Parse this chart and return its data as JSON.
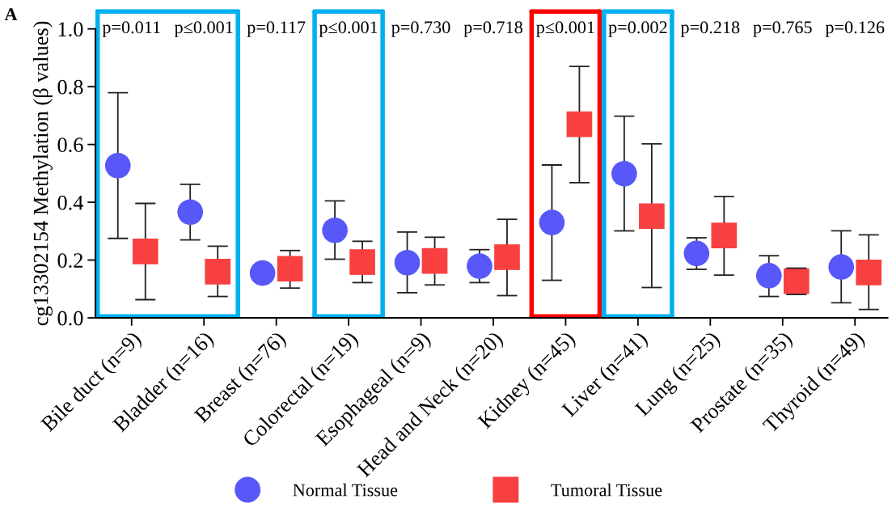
{
  "chart_data": {
    "type": "scatter",
    "ylabel": "cg13302154 Methylation (β values)",
    "categories": [
      "Bile duct (n=9)",
      "Bladder (n=16)",
      "Breast (n=76)",
      "Colorectal (n=19)",
      "Esophageal (n=9)",
      "Head and Neck (n=20)",
      "Kidney (n=45)",
      "Liver (n=41)",
      "Lung (n=25)",
      "Prostate (n=35)",
      "Thyroid (n=49)"
    ],
    "series": [
      {
        "name": "Normal Tissue",
        "color": "#5858f8",
        "marker": "circle",
        "values": [
          0.527,
          0.366,
          0.155,
          0.303,
          0.191,
          0.179,
          0.33,
          0.499,
          0.223,
          0.146,
          0.176
        ],
        "errors": [
          [
            0.275,
            0.779
          ],
          [
            0.27,
            0.462
          ],
          null,
          [
            0.203,
            0.405
          ],
          [
            0.087,
            0.297
          ],
          [
            0.122,
            0.236
          ],
          [
            0.13,
            0.529
          ],
          [
            0.301,
            0.698
          ],
          [
            0.168,
            0.277
          ],
          [
            0.074,
            0.215
          ],
          [
            0.052,
            0.301
          ]
        ]
      },
      {
        "name": "Tumoral Tissue",
        "color": "#f84040",
        "marker": "square",
        "values": [
          0.23,
          0.16,
          0.17,
          0.193,
          0.197,
          0.21,
          0.67,
          0.352,
          0.285,
          0.127,
          0.157
        ],
        "errors": [
          [
            0.063,
            0.396
          ],
          [
            0.074,
            0.248
          ],
          [
            0.103,
            0.233
          ],
          [
            0.122,
            0.265
          ],
          [
            0.114,
            0.279
          ],
          [
            0.077,
            0.341
          ],
          [
            0.468,
            0.87
          ],
          [
            0.105,
            0.602
          ],
          [
            0.148,
            0.42
          ],
          [
            0.081,
            0.172
          ],
          [
            0.029,
            0.287
          ]
        ]
      }
    ],
    "ylim": [
      0,
      1.0
    ],
    "yticks": [
      {
        "value": 0,
        "label": "0.0"
      },
      {
        "value": 0.2,
        "label": "0.2"
      },
      {
        "value": 0.4,
        "label": "0.4"
      },
      {
        "value": 0.6,
        "label": "0.6"
      },
      {
        "value": 0.8,
        "label": "0.8"
      },
      {
        "value": 1.0,
        "label": "1.0"
      }
    ],
    "annotations": [
      "A",
      "p=0.011",
      "p≤0.001",
      "p=0.117",
      "p≤0.001",
      "p=0.730",
      "p=0.718",
      "p≤0.001",
      "p=0.002",
      "p=0.218",
      "p=0.765",
      "p=0.126"
    ],
    "legend": "bottom",
    "grid": false
  }
}
